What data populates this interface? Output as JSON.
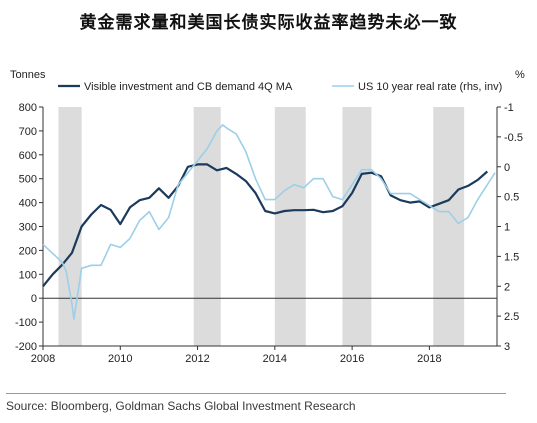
{
  "title": "黄金需求量和美国长债实际收益率趋势未必一致",
  "source": "Source: Bloomberg, Goldman Sachs Global Investment Research",
  "chart_data": {
    "type": "line",
    "left_axis_unit": "Tonnes",
    "right_axis_unit": "%",
    "left_ylim": [
      -200,
      800
    ],
    "left_ticks": [
      -200,
      -100,
      0,
      100,
      200,
      300,
      400,
      500,
      600,
      700,
      800
    ],
    "right_ylim_inverted": [
      -1,
      3
    ],
    "right_ticks": [
      -1,
      -0.5,
      0,
      0.5,
      1,
      1.5,
      2,
      2.5,
      3
    ],
    "xlim": [
      2008,
      2019.75
    ],
    "x_ticks": [
      2008,
      2010,
      2012,
      2014,
      2016,
      2018
    ],
    "shaded_periods": [
      [
        2008.4,
        2009.0
      ],
      [
        2011.9,
        2012.6
      ],
      [
        2014.0,
        2014.8
      ],
      [
        2015.75,
        2016.5
      ],
      [
        2018.1,
        2018.9
      ]
    ],
    "legend_position": "top",
    "series": [
      {
        "name": "Visible investment and CB demand 4Q MA",
        "axis": "left",
        "color": "#1b3a5c",
        "x": [
          2008.0,
          2008.25,
          2008.5,
          2008.75,
          2009.0,
          2009.25,
          2009.5,
          2009.75,
          2010.0,
          2010.25,
          2010.5,
          2010.75,
          2011.0,
          2011.25,
          2011.5,
          2011.75,
          2012.0,
          2012.25,
          2012.5,
          2012.75,
          2013.0,
          2013.25,
          2013.5,
          2013.75,
          2014.0,
          2014.25,
          2014.5,
          2014.75,
          2015.0,
          2015.25,
          2015.5,
          2015.75,
          2016.0,
          2016.25,
          2016.5,
          2016.75,
          2017.0,
          2017.25,
          2017.5,
          2017.75,
          2018.0,
          2018.25,
          2018.5,
          2018.75,
          2019.0,
          2019.25,
          2019.5
        ],
        "y": [
          50,
          100,
          140,
          190,
          300,
          350,
          390,
          370,
          310,
          380,
          410,
          420,
          460,
          420,
          470,
          550,
          560,
          560,
          535,
          545,
          520,
          490,
          440,
          365,
          355,
          365,
          368,
          368,
          370,
          360,
          365,
          385,
          440,
          520,
          525,
          510,
          430,
          410,
          400,
          405,
          380,
          395,
          410,
          455,
          470,
          495,
          530
        ]
      },
      {
        "name": "US 10 year real rate (rhs, inv)",
        "axis": "right",
        "color": "#9ccfe8",
        "x": [
          2008.0,
          2008.25,
          2008.5,
          2008.6,
          2008.75,
          2008.8,
          2009.0,
          2009.25,
          2009.5,
          2009.75,
          2010.0,
          2010.25,
          2010.5,
          2010.75,
          2011.0,
          2011.25,
          2011.5,
          2011.75,
          2012.0,
          2012.25,
          2012.5,
          2012.65,
          2012.75,
          2013.0,
          2013.25,
          2013.5,
          2013.75,
          2014.0,
          2014.25,
          2014.5,
          2014.75,
          2015.0,
          2015.25,
          2015.5,
          2015.75,
          2016.0,
          2016.25,
          2016.5,
          2016.75,
          2017.0,
          2017.25,
          2017.5,
          2017.75,
          2018.0,
          2018.25,
          2018.5,
          2018.75,
          2019.0,
          2019.25,
          2019.5,
          2019.7
        ],
        "y": [
          1.3,
          1.45,
          1.6,
          1.75,
          2.3,
          2.55,
          1.7,
          1.65,
          1.65,
          1.3,
          1.35,
          1.2,
          0.9,
          0.75,
          1.05,
          0.85,
          0.3,
          0.1,
          -0.1,
          -0.3,
          -0.6,
          -0.7,
          -0.65,
          -0.55,
          -0.25,
          0.2,
          0.55,
          0.55,
          0.4,
          0.3,
          0.35,
          0.2,
          0.2,
          0.5,
          0.55,
          0.3,
          0.05,
          0.05,
          0.2,
          0.45,
          0.45,
          0.45,
          0.55,
          0.65,
          0.75,
          0.75,
          0.95,
          0.85,
          0.55,
          0.3,
          0.1
        ]
      }
    ]
  }
}
